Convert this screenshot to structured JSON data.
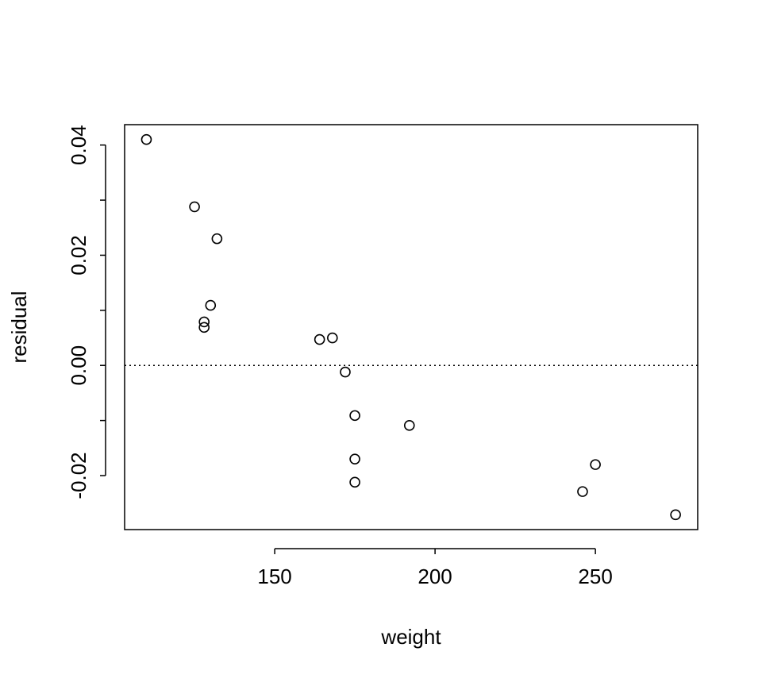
{
  "chart_data": {
    "type": "scatter",
    "x_label": "weight",
    "y_label": "residual",
    "x": [
      110,
      125,
      132,
      130,
      128,
      128,
      164,
      168,
      172,
      175,
      175,
      175,
      192,
      250,
      246,
      275
    ],
    "values": [
      0.041,
      0.0288,
      0.023,
      0.0109,
      0.0079,
      0.0069,
      0.0047,
      0.005,
      -0.0012,
      -0.0091,
      -0.017,
      -0.0212,
      -0.0109,
      -0.018,
      -0.0229,
      -0.0271
    ],
    "color": "#000000",
    "xlim": [
      103.2,
      281.9
    ],
    "ylim": [
      -0.0298,
      0.0437
    ],
    "xticks": [
      150,
      200,
      250
    ],
    "yticks": [
      -0.02,
      {
        "value": 0,
        "label": "0.00"
      },
      0.02,
      0.04
    ],
    "minor_yticks": [
      -0.01,
      0.01,
      0.03
    ],
    "reference_line": 0
  }
}
